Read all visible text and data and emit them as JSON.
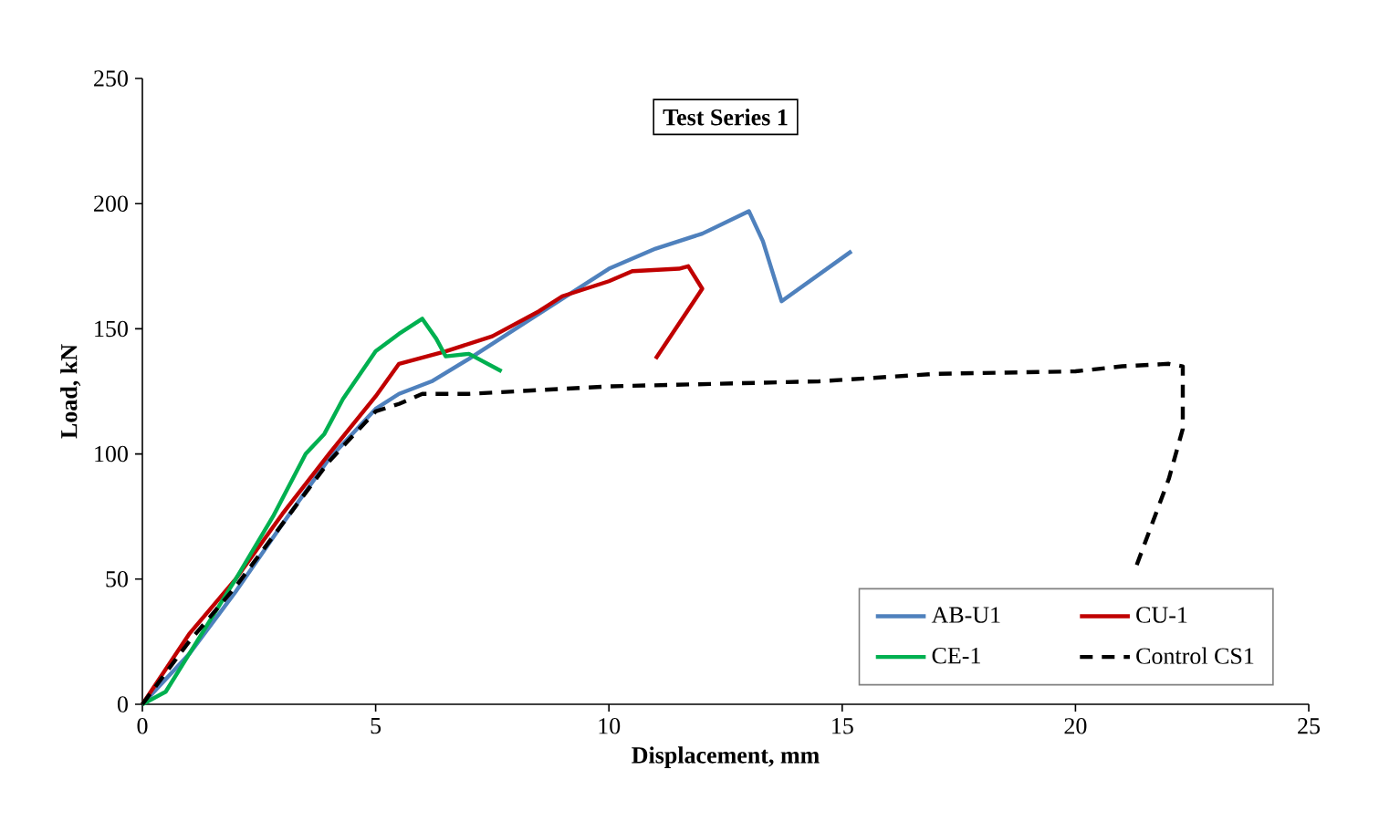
{
  "chart_data": {
    "type": "line",
    "title": "Test Series 1",
    "xlabel": "Displacement, mm",
    "ylabel": "Load, kN",
    "xlim": [
      0,
      25
    ],
    "ylim": [
      0,
      250
    ],
    "xticks": [
      0,
      5,
      10,
      15,
      20,
      25
    ],
    "yticks": [
      0,
      50,
      100,
      150,
      200,
      250
    ],
    "grid": false,
    "legend": "bottom right",
    "marker": "none",
    "series": [
      {
        "name": "AB-U1",
        "color": "#4f81bd",
        "line_style": "solid",
        "x": [
          0,
          1,
          2,
          3,
          4,
          5,
          5.5,
          6.2,
          7,
          8,
          9,
          10,
          11,
          12,
          13,
          13.3,
          13.7,
          15.2
        ],
        "values": [
          0,
          20,
          45,
          72,
          98,
          118,
          124,
          129,
          138,
          150,
          162,
          174,
          182,
          188,
          197,
          185,
          161,
          181
        ]
      },
      {
        "name": "CU-1",
        "color": "#c00000",
        "line_style": "solid",
        "x": [
          0,
          1,
          2,
          3,
          4,
          5,
          5.5,
          6.5,
          7.5,
          8.5,
          9,
          10,
          10.5,
          11.5,
          11.7,
          12,
          11
        ],
        "values": [
          0,
          28,
          50,
          76,
          100,
          123,
          136,
          141,
          147,
          157,
          163,
          169,
          173,
          174,
          175,
          166,
          138
        ]
      },
      {
        "name": "CE-1",
        "color": "#00b050",
        "line_style": "solid",
        "x": [
          0,
          0.5,
          1,
          2,
          2.8,
          3.5,
          3.9,
          4.3,
          5,
          5.5,
          6,
          6.3,
          6.5,
          7,
          7.7
        ],
        "values": [
          0,
          5,
          20,
          50,
          75,
          100,
          108,
          122,
          141,
          148,
          154,
          146,
          139,
          140,
          133
        ]
      },
      {
        "name": "Control CS1",
        "color": "#000000",
        "line_style": "dashed",
        "x": [
          0,
          1,
          2,
          3,
          4,
          5,
          5.5,
          6,
          7,
          10,
          14.5,
          17,
          20,
          21,
          22,
          22.3,
          22.3,
          22,
          21.3
        ],
        "values": [
          0,
          25,
          47,
          72,
          97,
          117,
          120,
          124,
          124,
          127,
          129,
          132,
          133,
          135,
          136,
          135,
          110,
          90,
          55
        ]
      }
    ]
  }
}
